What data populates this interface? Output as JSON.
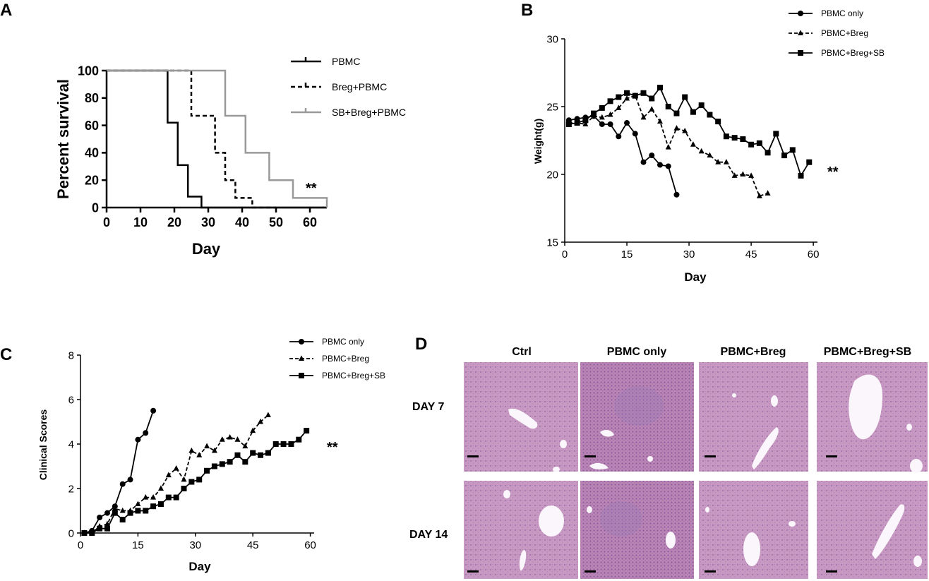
{
  "chart_data": [
    {
      "panel": "A",
      "type": "line",
      "subtype": "kaplan-meier-step",
      "xlabel": "Day",
      "ylabel": "Percent survival",
      "xlim": [
        0,
        65
      ],
      "ylim": [
        0,
        100
      ],
      "xticks": [
        0,
        10,
        20,
        30,
        40,
        50,
        60
      ],
      "yticks": [
        0,
        20,
        40,
        60,
        80,
        100
      ],
      "significance": "**",
      "series": [
        {
          "name": "PBMC",
          "color": "#000000",
          "dash": "solid",
          "x": [
            0,
            18,
            18,
            21,
            21,
            24,
            24,
            28,
            28,
            65
          ],
          "y": [
            100,
            100,
            62,
            62,
            31,
            31,
            8,
            8,
            0,
            0
          ]
        },
        {
          "name": "Breg+PBMC",
          "color": "#000000",
          "dash": "dashed",
          "x": [
            0,
            25,
            25,
            32,
            32,
            35,
            35,
            38,
            38,
            43,
            43,
            50,
            50
          ],
          "y": [
            100,
            100,
            67,
            67,
            40,
            40,
            20,
            20,
            7,
            7,
            0,
            0,
            0
          ]
        },
        {
          "name": "SB+Breg+PBMC",
          "color": "#999999",
          "dash": "solid",
          "x": [
            0,
            35,
            35,
            41,
            41,
            48,
            48,
            55,
            55,
            65,
            65
          ],
          "y": [
            100,
            100,
            67,
            67,
            40,
            40,
            20,
            20,
            7,
            7,
            0
          ]
        }
      ]
    },
    {
      "panel": "B",
      "type": "line",
      "xlabel": "Day",
      "ylabel": "Weight(g)",
      "xlim": [
        0,
        61
      ],
      "ylim": [
        15,
        30
      ],
      "xticks": [
        0,
        15,
        30,
        45,
        60
      ],
      "yticks": [
        15,
        20,
        25,
        30
      ],
      "significance": "**",
      "series": [
        {
          "name": "PBMC only",
          "marker": "circle",
          "dash": "solid",
          "x": [
            1,
            3,
            5,
            7,
            9,
            11,
            13,
            15,
            17,
            19,
            21,
            23,
            25,
            27
          ],
          "y": [
            24.0,
            24.1,
            24.2,
            24.3,
            23.7,
            23.7,
            22.8,
            23.8,
            23.0,
            20.9,
            21.4,
            20.7,
            20.6,
            18.5
          ]
        },
        {
          "name": "PBMC+Breg",
          "marker": "triangle",
          "dash": "dashed",
          "x": [
            1,
            3,
            5,
            7,
            9,
            11,
            13,
            15,
            17,
            19,
            21,
            23,
            25,
            27,
            29,
            31,
            33,
            35,
            37,
            39,
            41,
            43,
            45,
            47,
            49
          ],
          "y": [
            23.8,
            23.8,
            23.7,
            24.3,
            24.2,
            24.4,
            24.9,
            25.6,
            25.8,
            24.2,
            24.8,
            23.9,
            22.0,
            23.4,
            23.2,
            22.2,
            21.7,
            21.4,
            20.9,
            20.9,
            19.9,
            20.0,
            19.9,
            18.4,
            18.6
          ]
        },
        {
          "name": "PBMC+Breg+SB",
          "marker": "square",
          "dash": "solid",
          "x": [
            1,
            3,
            5,
            7,
            9,
            11,
            13,
            15,
            17,
            19,
            21,
            23,
            25,
            27,
            29,
            31,
            33,
            35,
            37,
            39,
            41,
            43,
            45,
            47,
            49,
            51,
            53,
            55,
            57,
            59
          ],
          "y": [
            23.7,
            23.8,
            24.0,
            24.5,
            24.9,
            25.4,
            25.7,
            26.0,
            25.8,
            26.0,
            25.6,
            26.4,
            25.0,
            24.5,
            25.7,
            24.6,
            25.1,
            24.4,
            23.9,
            22.8,
            22.7,
            22.6,
            22.2,
            22.3,
            21.6,
            23.0,
            21.4,
            21.8,
            19.9,
            20.9
          ]
        }
      ]
    },
    {
      "panel": "C",
      "type": "line",
      "xlabel": "Day",
      "ylabel": "Clinical Scores",
      "xlim": [
        0,
        61
      ],
      "ylim": [
        0,
        8
      ],
      "xticks": [
        0,
        15,
        30,
        45,
        60
      ],
      "yticks": [
        0,
        2,
        4,
        6,
        8
      ],
      "significance": "**",
      "series": [
        {
          "name": "PBMC only",
          "marker": "circle",
          "dash": "solid",
          "x": [
            1,
            3,
            5,
            7,
            9,
            11,
            13,
            15,
            17,
            19
          ],
          "y": [
            0,
            0.1,
            0.7,
            0.9,
            1.2,
            2.2,
            2.4,
            4.2,
            4.5,
            5.5
          ]
        },
        {
          "name": "PBMC+Breg",
          "marker": "triangle",
          "dash": "dashed",
          "x": [
            1,
            3,
            5,
            7,
            9,
            11,
            13,
            15,
            17,
            19,
            21,
            23,
            25,
            27,
            29,
            31,
            33,
            35,
            37,
            39,
            41,
            43,
            45,
            47,
            49
          ],
          "y": [
            0,
            0,
            0.3,
            0.4,
            1.1,
            1.0,
            1.0,
            1.3,
            1.6,
            1.6,
            2.0,
            2.6,
            2.9,
            2.4,
            3.7,
            3.5,
            3.9,
            3.7,
            4.2,
            4.3,
            4.2,
            3.9,
            4.6,
            5.0,
            5.3
          ]
        },
        {
          "name": "PBMC+Breg+SB",
          "marker": "square",
          "dash": "solid",
          "x": [
            1,
            3,
            5,
            7,
            9,
            11,
            13,
            15,
            17,
            19,
            21,
            23,
            25,
            27,
            29,
            31,
            33,
            35,
            37,
            39,
            41,
            43,
            45,
            47,
            49,
            51,
            53,
            55,
            57,
            59
          ],
          "y": [
            0,
            0,
            0.2,
            0.2,
            0.9,
            0.6,
            0.9,
            1.0,
            1.0,
            1.2,
            1.3,
            1.6,
            1.6,
            2.0,
            2.3,
            2.4,
            2.8,
            3.0,
            3.1,
            3.2,
            3.5,
            3.2,
            3.6,
            3.5,
            3.6,
            4.0,
            4.0,
            4.0,
            4.2,
            4.6
          ]
        }
      ]
    }
  ],
  "panels": {
    "a": {
      "letter": "A"
    },
    "b": {
      "letter": "B"
    },
    "c": {
      "letter": "C"
    },
    "d": {
      "letter": "D",
      "columns": [
        "Ctrl",
        "PBMC only",
        "PBMC+Breg",
        "PBMC+Breg+SB"
      ],
      "rows": [
        "DAY 7",
        "DAY 14"
      ]
    }
  },
  "colors": {
    "black": "#000000",
    "gray_series": "#999999",
    "tissue_base": "#c99bc4",
    "tissue_dark": "#b482b5",
    "tissue_infiltrate": "#9a7ab8",
    "tissue_vessel": "#fbf6fb"
  }
}
